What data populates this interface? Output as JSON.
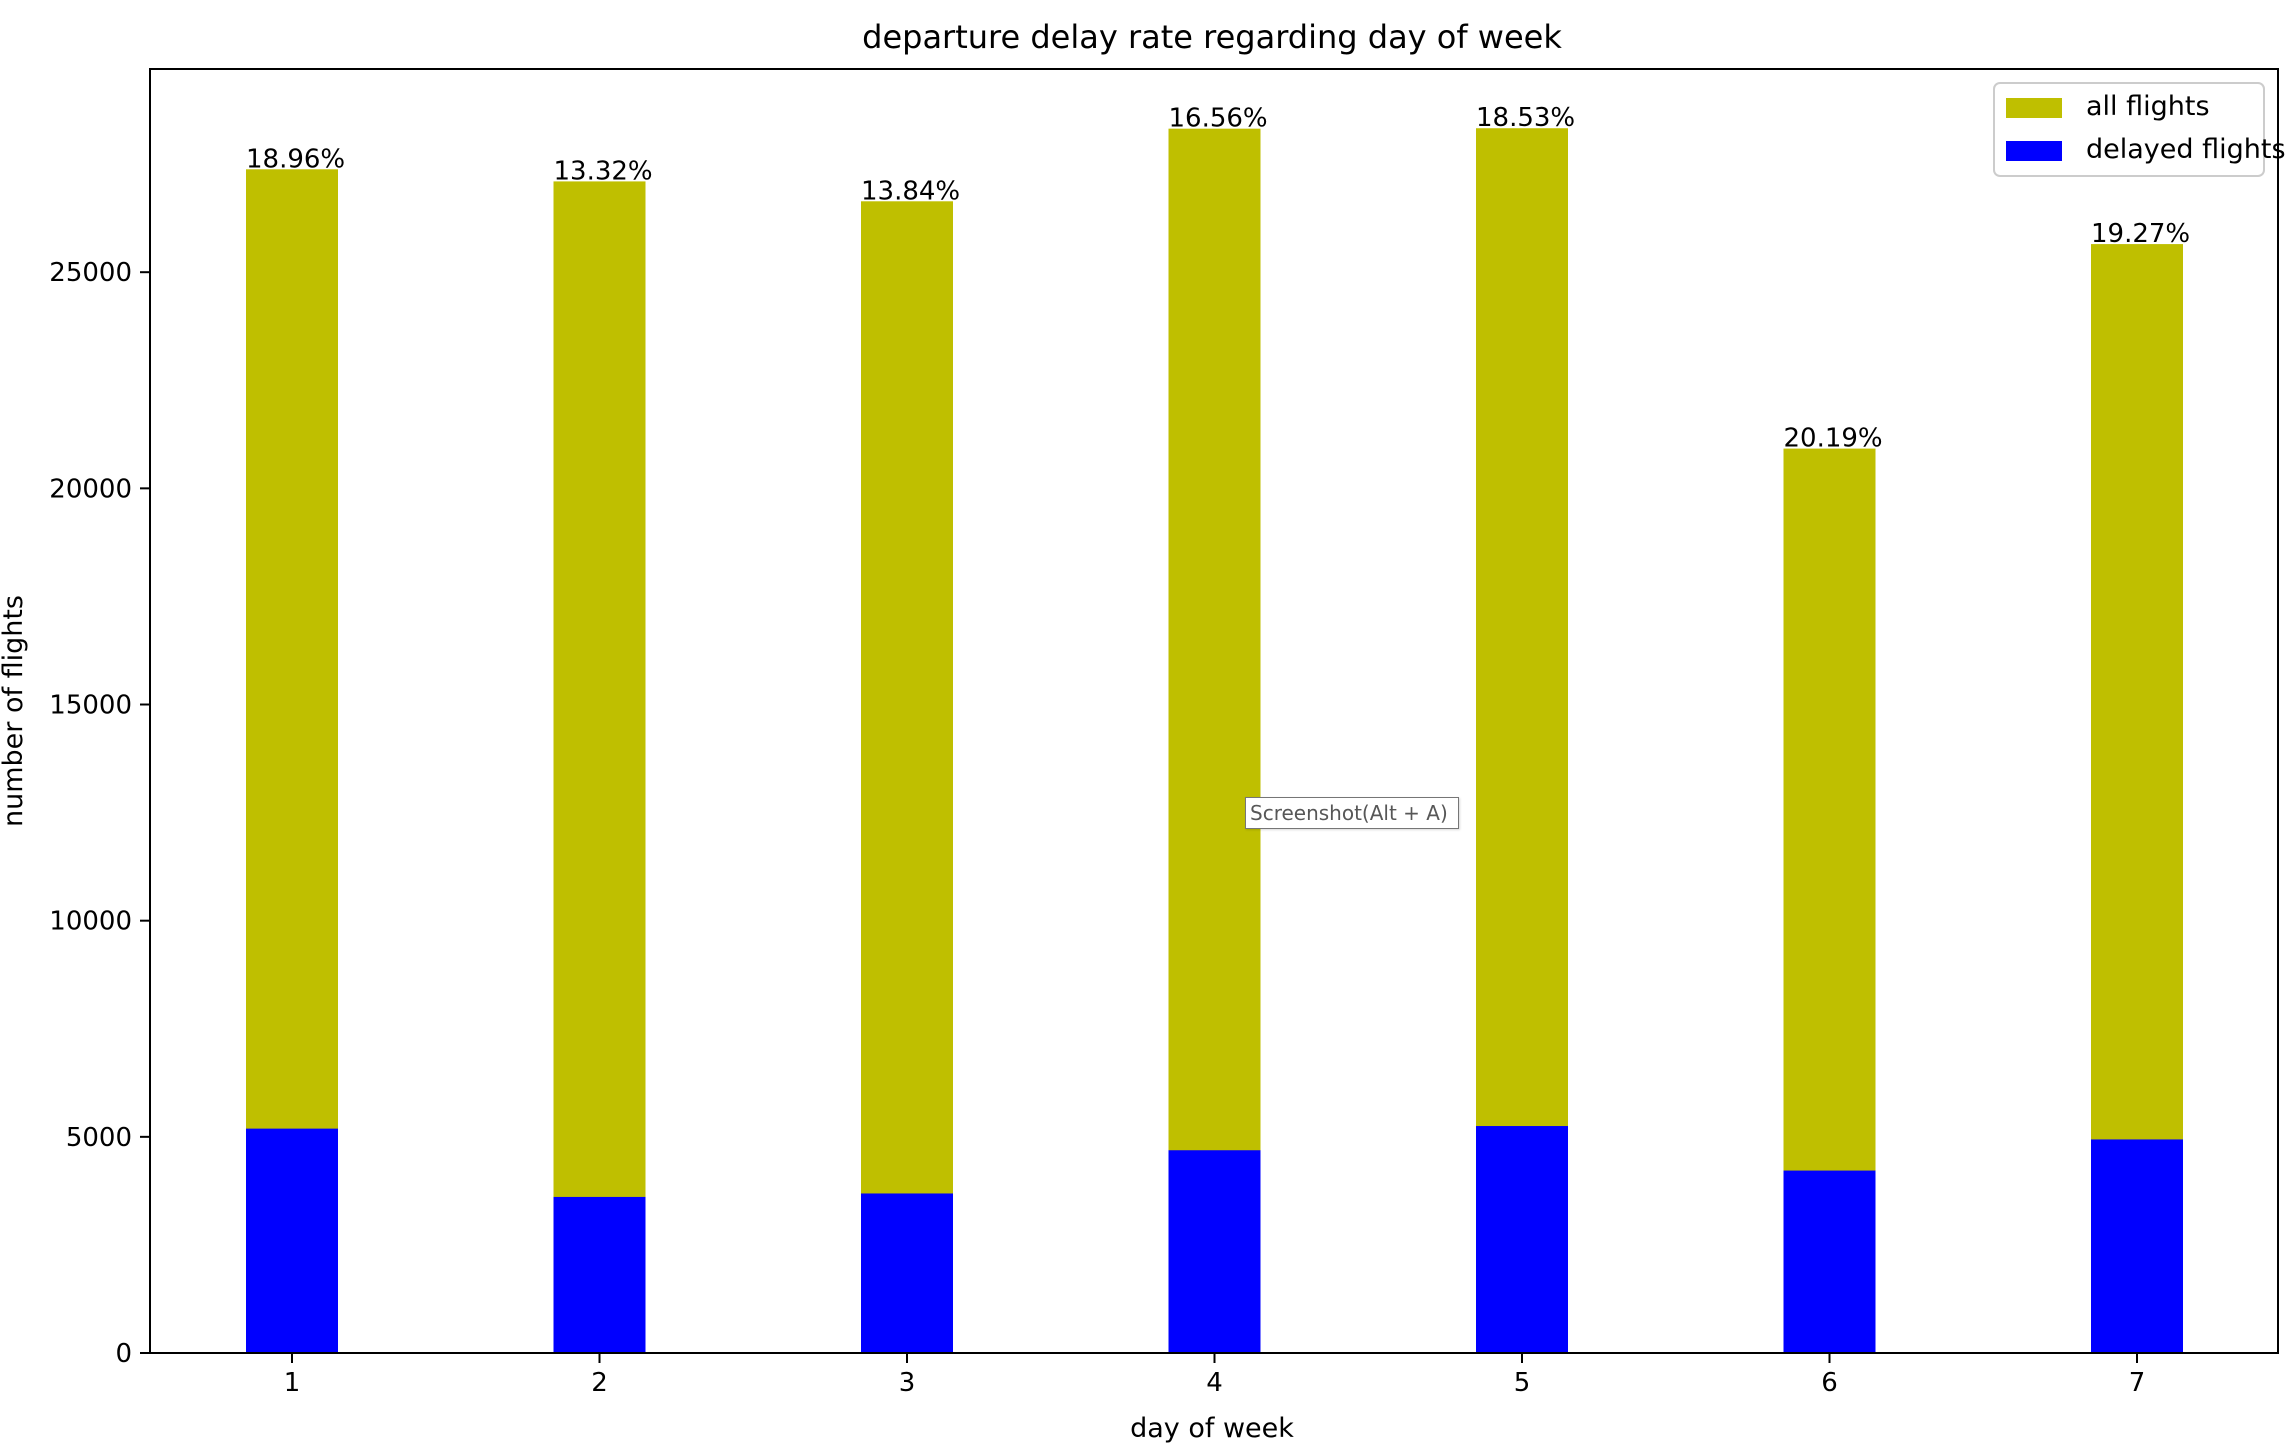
{
  "chart_data": {
    "type": "bar",
    "title": "departure delay rate regarding day of week",
    "xlabel": "day of week",
    "ylabel": "number of flights",
    "categories": [
      "1",
      "2",
      "3",
      "4",
      "5",
      "6",
      "7"
    ],
    "ylim": [
      0,
      29700
    ],
    "yticks": [
      0,
      5000,
      10000,
      15000,
      20000,
      25000
    ],
    "yticklabels": [
      "0",
      "5000",
      "10000",
      "15000",
      "20000",
      "25000"
    ],
    "grid": false,
    "legend_position": "top-right",
    "series": [
      {
        "name": "all flights",
        "color": "#bfbf00",
        "values": [
          27380,
          27100,
          26640,
          28320,
          28330,
          20920,
          25650
        ]
      },
      {
        "name": "delayed flights",
        "color": "#0000ff",
        "values": [
          5190,
          3610,
          3690,
          4690,
          5250,
          4220,
          4940
        ]
      }
    ],
    "data_labels": [
      "18.96%",
      "13.32%",
      "13.84%",
      "16.56%",
      "18.53%",
      "20.19%",
      "19.27%"
    ]
  },
  "tooltip": {
    "text": "Screenshot(Alt + A)"
  }
}
